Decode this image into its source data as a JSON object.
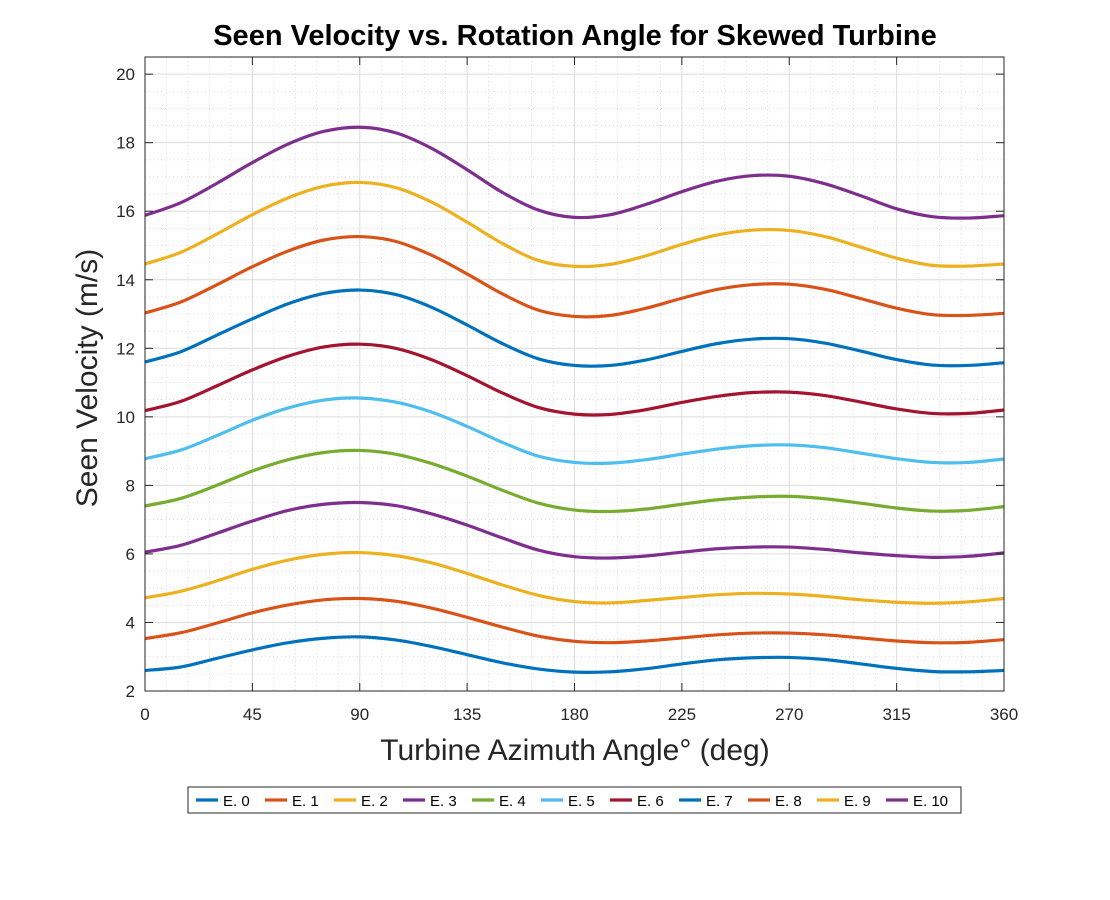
{
  "chart_data": {
    "type": "line",
    "title": "Seen Velocity vs. Rotation Angle for Skewed Turbine",
    "xlabel": "Turbine Azimuth Angle° (deg)",
    "ylabel": "Seen Velocity (m/s)",
    "xlim": [
      0,
      360
    ],
    "ylim": [
      2,
      20.5
    ],
    "xticks": [
      0,
      45,
      90,
      135,
      180,
      225,
      270,
      315,
      360
    ],
    "yticks": [
      2,
      4,
      6,
      8,
      10,
      12,
      14,
      16,
      18,
      20
    ],
    "grid": true,
    "minor_grid": true,
    "legend_position": "bottom-outside",
    "legend_orientation": "horizontal",
    "x": [
      0,
      15,
      30,
      45,
      60,
      75,
      90,
      105,
      120,
      135,
      150,
      165,
      180,
      195,
      210,
      225,
      240,
      255,
      270,
      285,
      300,
      315,
      330,
      345,
      360
    ],
    "series": [
      {
        "name": "E. 0",
        "color": "#0072BD",
        "values": [
          2.6,
          2.7,
          2.95,
          3.2,
          3.41,
          3.54,
          3.58,
          3.49,
          3.3,
          3.06,
          2.82,
          2.64,
          2.55,
          2.56,
          2.65,
          2.79,
          2.91,
          2.97,
          2.98,
          2.92,
          2.79,
          2.66,
          2.57,
          2.56,
          2.6
        ]
      },
      {
        "name": "E. 1",
        "color": "#D95319",
        "values": [
          3.53,
          3.7,
          3.98,
          4.28,
          4.51,
          4.66,
          4.7,
          4.62,
          4.42,
          4.15,
          3.86,
          3.6,
          3.45,
          3.41,
          3.46,
          3.55,
          3.64,
          3.69,
          3.69,
          3.64,
          3.55,
          3.46,
          3.41,
          3.42,
          3.5
        ]
      },
      {
        "name": "E. 2",
        "color": "#EDB120",
        "values": [
          4.72,
          4.91,
          5.21,
          5.55,
          5.82,
          5.99,
          6.04,
          5.95,
          5.74,
          5.43,
          5.09,
          4.79,
          4.61,
          4.57,
          4.64,
          4.73,
          4.81,
          4.85,
          4.83,
          4.76,
          4.66,
          4.59,
          4.56,
          4.6,
          4.7
        ]
      },
      {
        "name": "E. 3",
        "color": "#7E2F8E",
        "values": [
          6.05,
          6.25,
          6.6,
          6.96,
          7.27,
          7.45,
          7.5,
          7.41,
          7.17,
          6.84,
          6.46,
          6.11,
          5.92,
          5.88,
          5.94,
          6.05,
          6.15,
          6.2,
          6.2,
          6.13,
          6.03,
          5.95,
          5.9,
          5.93,
          6.03
        ]
      },
      {
        "name": "E. 4",
        "color": "#77AC30",
        "values": [
          7.4,
          7.62,
          8.0,
          8.42,
          8.75,
          8.96,
          9.02,
          8.91,
          8.64,
          8.27,
          7.85,
          7.48,
          7.28,
          7.24,
          7.31,
          7.45,
          7.58,
          7.66,
          7.68,
          7.61,
          7.48,
          7.34,
          7.25,
          7.27,
          7.38
        ]
      },
      {
        "name": "E. 5",
        "color": "#4DBEEE",
        "values": [
          8.78,
          9.03,
          9.45,
          9.9,
          10.26,
          10.49,
          10.55,
          10.43,
          10.14,
          9.72,
          9.25,
          8.85,
          8.67,
          8.65,
          8.75,
          8.91,
          9.06,
          9.16,
          9.18,
          9.1,
          8.94,
          8.78,
          8.67,
          8.67,
          8.77
        ]
      },
      {
        "name": "E. 6",
        "color": "#A2142F",
        "values": [
          10.18,
          10.45,
          10.9,
          11.37,
          11.77,
          12.04,
          12.12,
          12.0,
          11.67,
          11.2,
          10.69,
          10.27,
          10.08,
          10.07,
          10.21,
          10.42,
          10.6,
          10.71,
          10.72,
          10.62,
          10.43,
          10.23,
          10.1,
          10.1,
          10.2
        ]
      },
      {
        "name": "E. 7",
        "color": "#0072BD",
        "values": [
          11.6,
          11.9,
          12.38,
          12.86,
          13.3,
          13.6,
          13.7,
          13.57,
          13.2,
          12.68,
          12.13,
          11.69,
          11.5,
          11.5,
          11.66,
          11.91,
          12.14,
          12.27,
          12.28,
          12.15,
          11.92,
          11.67,
          11.51,
          11.5,
          11.58
        ]
      },
      {
        "name": "E. 8",
        "color": "#D95319",
        "values": [
          13.03,
          13.35,
          13.85,
          14.38,
          14.84,
          15.16,
          15.26,
          15.12,
          14.72,
          14.17,
          13.58,
          13.11,
          12.93,
          12.96,
          13.17,
          13.46,
          13.72,
          13.86,
          13.87,
          13.72,
          13.45,
          13.17,
          12.98,
          12.96,
          13.02
        ]
      },
      {
        "name": "E. 9",
        "color": "#EDB120",
        "values": [
          14.46,
          14.8,
          15.33,
          15.9,
          16.39,
          16.73,
          16.84,
          16.69,
          16.27,
          15.68,
          15.05,
          14.56,
          14.39,
          14.45,
          14.7,
          15.03,
          15.31,
          15.45,
          15.44,
          15.26,
          14.95,
          14.63,
          14.42,
          14.4,
          14.46
        ]
      },
      {
        "name": "E. 10",
        "color": "#7E2F8E",
        "values": [
          15.88,
          16.25,
          16.81,
          17.42,
          17.96,
          18.33,
          18.45,
          18.29,
          17.84,
          17.21,
          16.54,
          16.03,
          15.82,
          15.9,
          16.2,
          16.57,
          16.88,
          17.04,
          17.02,
          16.8,
          16.45,
          16.07,
          15.84,
          15.8,
          15.87
        ]
      }
    ]
  }
}
